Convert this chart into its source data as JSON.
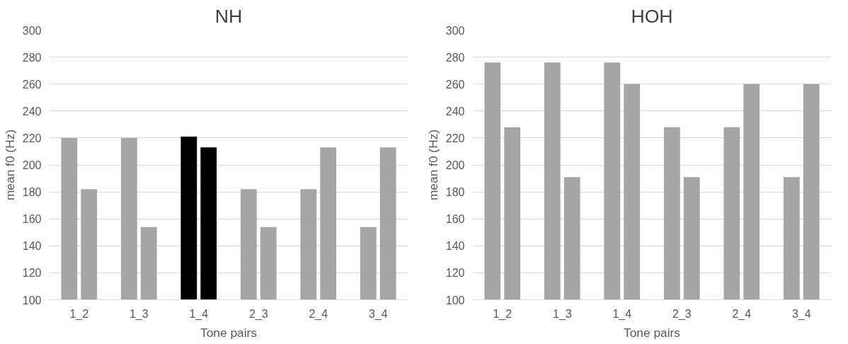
{
  "chart_data": [
    {
      "type": "bar",
      "title": "NH",
      "xlabel": "Tone pairs",
      "ylabel": "mean f0 (Hz)",
      "categories": [
        "1_2",
        "1_3",
        "1_4",
        "2_3",
        "2_4",
        "3_4"
      ],
      "series": [
        {
          "colors": [
            "#a5a5a5",
            "#a5a5a5",
            "#000000",
            "#a5a5a5",
            "#a5a5a5",
            "#a5a5a5"
          ],
          "values": [
            220,
            220,
            221,
            182,
            182,
            154
          ]
        },
        {
          "colors": [
            "#a5a5a5",
            "#a5a5a5",
            "#000000",
            "#a5a5a5",
            "#a5a5a5",
            "#a5a5a5"
          ],
          "values": [
            182,
            154,
            213,
            154,
            213,
            213
          ]
        }
      ],
      "ylim": [
        100,
        300
      ],
      "yticks": [
        100,
        120,
        140,
        160,
        180,
        200,
        220,
        240,
        260,
        280,
        300
      ],
      "grid": "y"
    },
    {
      "type": "bar",
      "title": "HOH",
      "xlabel": "Tone pairs",
      "ylabel": "mean f0 (Hz)",
      "categories": [
        "1_2",
        "1_3",
        "1_4",
        "2_3",
        "2_4",
        "3_4"
      ],
      "series": [
        {
          "colors": [
            "#a5a5a5",
            "#a5a5a5",
            "#a5a5a5",
            "#a5a5a5",
            "#a5a5a5",
            "#a5a5a5"
          ],
          "values": [
            276,
            276,
            276,
            228,
            228,
            191
          ]
        },
        {
          "colors": [
            "#a5a5a5",
            "#a5a5a5",
            "#a5a5a5",
            "#a5a5a5",
            "#a5a5a5",
            "#a5a5a5"
          ],
          "values": [
            228,
            191,
            260,
            191,
            260,
            260
          ]
        }
      ],
      "ylim": [
        100,
        300
      ],
      "yticks": [
        100,
        120,
        140,
        160,
        180,
        200,
        220,
        240,
        260,
        280,
        300
      ],
      "grid": "y"
    }
  ]
}
